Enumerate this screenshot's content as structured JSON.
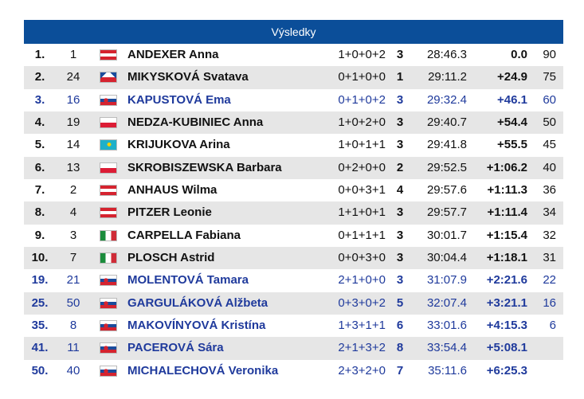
{
  "header": {
    "title": "Výsledky"
  },
  "table": {
    "rows": [
      [
        "1.",
        1,
        "ANDEXER Anna",
        "1+0+0+2",
        3,
        "28:46.3",
        "0.0",
        90
      ],
      [
        "2.",
        24,
        "MIKYSKOVÁ Svatava",
        "0+1+0+0",
        1,
        "29:11.2",
        "+24.9",
        75
      ],
      [
        "3.",
        16,
        "KAPUSTOVÁ Ema",
        "0+1+0+2",
        3,
        "29:32.4",
        "+46.1",
        60
      ],
      [
        "4.",
        19,
        "NEDZA-KUBINIEC Anna",
        "1+0+2+0",
        3,
        "29:40.7",
        "+54.4",
        50
      ],
      [
        "5.",
        14,
        "KRIJUKOVA Arina",
        "1+0+1+1",
        3,
        "29:41.8",
        "+55.5",
        45
      ],
      [
        "6.",
        13,
        "SKROBISZEWSKA Barbara",
        "0+2+0+0",
        2,
        "29:52.5",
        "+1:06.2",
        40
      ],
      [
        "7.",
        2,
        "ANHAUS Wilma",
        "0+0+3+1",
        4,
        "29:57.6",
        "+1:11.3",
        36
      ],
      [
        "8.",
        4,
        "PITZER Leonie",
        "1+1+0+1",
        3,
        "29:57.7",
        "+1:11.4",
        34
      ],
      [
        "9.",
        3,
        "CARPELLA Fabiana",
        "0+1+1+1",
        3,
        "30:01.7",
        "+1:15.4",
        32
      ],
      [
        "10.",
        7,
        "PLOSCH Astrid",
        "0+0+3+0",
        3,
        "30:04.4",
        "+1:18.1",
        31
      ],
      [
        "19.",
        21,
        "MOLENTOVÁ Tamara",
        "2+1+0+0",
        3,
        "31:07.9",
        "+2:21.6",
        22
      ],
      [
        "25.",
        50,
        "GARGULÁKOVÁ Alžbeta",
        "0+3+0+2",
        5,
        "32:07.4",
        "+3:21.1",
        16
      ],
      [
        "35.",
        8,
        "MAKOVÍNYOVÁ Kristína",
        "1+3+1+1",
        6,
        "33:01.6",
        "+4:15.3",
        6
      ],
      [
        "41.",
        11,
        "PACEROVÁ Sára",
        "2+1+3+2",
        8,
        "33:54.4",
        "+5:08.1"
      ],
      [
        "50.",
        40,
        "MICHALECHOVÁ Veronika",
        "2+3+2+0",
        7,
        "35:11.6",
        "+6:25.3"
      ]
    ]
  }
}
